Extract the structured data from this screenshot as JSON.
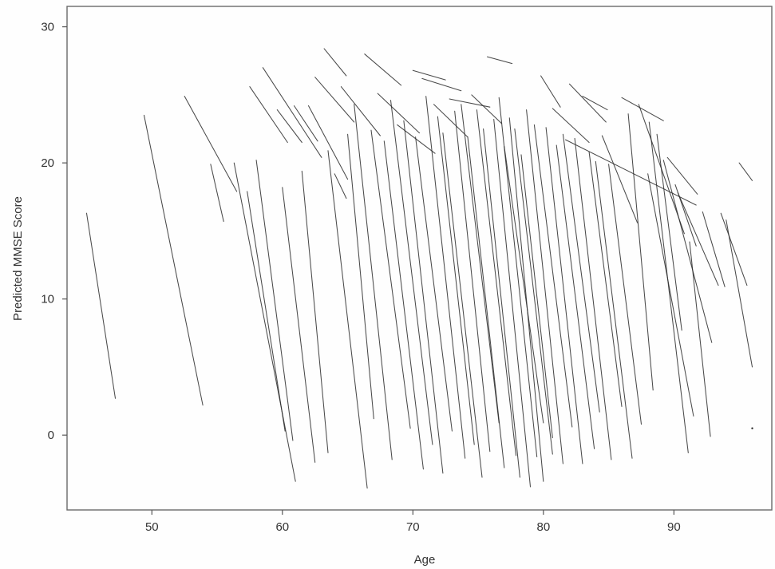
{
  "chart_data": {
    "type": "line",
    "title": "",
    "xlabel": "Age",
    "ylabel": "Predicted MMSE Score",
    "xlim": [
      43.5,
      97.5
    ],
    "ylim": [
      -5.5,
      31.5
    ],
    "x_ticks": [
      50,
      60,
      70,
      80,
      90
    ],
    "y_ticks": [
      0,
      10,
      20,
      30
    ],
    "x_tick_labels": [
      "50",
      "60",
      "70",
      "80",
      "90"
    ],
    "y_tick_labels": [
      "0",
      "10",
      "20",
      "30"
    ],
    "grid": false,
    "legend": "none",
    "line_color": "#2a2a2a",
    "series": [
      {
        "x": [
          45.0,
          47.2
        ],
        "y": [
          16.3,
          2.7
        ]
      },
      {
        "x": [
          49.4,
          53.9
        ],
        "y": [
          23.5,
          2.2
        ]
      },
      {
        "x": [
          52.5,
          56.5
        ],
        "y": [
          24.9,
          17.9
        ]
      },
      {
        "x": [
          54.5,
          55.5
        ],
        "y": [
          19.9,
          15.7
        ]
      },
      {
        "x": [
          56.3,
          61.0
        ],
        "y": [
          20.0,
          -3.4
        ]
      },
      {
        "x": [
          57.3,
          60.2
        ],
        "y": [
          17.9,
          0.3
        ]
      },
      {
        "x": [
          57.5,
          60.4
        ],
        "y": [
          25.6,
          21.5
        ]
      },
      {
        "x": [
          58.0,
          60.8
        ],
        "y": [
          20.2,
          -0.4
        ]
      },
      {
        "x": [
          58.5,
          63.0
        ],
        "y": [
          27.0,
          20.4
        ]
      },
      {
        "x": [
          59.6,
          61.5
        ],
        "y": [
          23.9,
          21.5
        ]
      },
      {
        "x": [
          60.0,
          62.5
        ],
        "y": [
          18.2,
          -2.0
        ]
      },
      {
        "x": [
          60.9,
          62.7
        ],
        "y": [
          24.2,
          21.6
        ]
      },
      {
        "x": [
          61.5,
          63.5
        ],
        "y": [
          19.4,
          -1.3
        ]
      },
      {
        "x": [
          62.0,
          65.0
        ],
        "y": [
          24.2,
          18.8
        ]
      },
      {
        "x": [
          62.5,
          65.5
        ],
        "y": [
          26.3,
          23.0
        ]
      },
      {
        "x": [
          63.2,
          64.9
        ],
        "y": [
          28.4,
          26.4
        ]
      },
      {
        "x": [
          63.5,
          66.5
        ],
        "y": [
          20.9,
          -3.9
        ]
      },
      {
        "x": [
          64.0,
          64.9
        ],
        "y": [
          19.2,
          17.4
        ]
      },
      {
        "x": [
          64.5,
          67.5
        ],
        "y": [
          25.6,
          22.0
        ]
      },
      {
        "x": [
          65.0,
          67.0
        ],
        "y": [
          22.1,
          1.2
        ]
      },
      {
        "x": [
          65.5,
          68.4
        ],
        "y": [
          24.3,
          -1.8
        ]
      },
      {
        "x": [
          66.3,
          69.1
        ],
        "y": [
          28.0,
          25.7
        ]
      },
      {
        "x": [
          66.8,
          69.8
        ],
        "y": [
          22.4,
          0.5
        ]
      },
      {
        "x": [
          67.3,
          70.5
        ],
        "y": [
          25.1,
          22.2
        ]
      },
      {
        "x": [
          67.8,
          70.8
        ],
        "y": [
          21.6,
          -2.5
        ]
      },
      {
        "x": [
          68.3,
          71.5
        ],
        "y": [
          24.6,
          -0.7
        ]
      },
      {
        "x": [
          68.8,
          71.7
        ],
        "y": [
          22.8,
          20.7
        ]
      },
      {
        "x": [
          69.3,
          72.3
        ],
        "y": [
          23.1,
          -2.8
        ]
      },
      {
        "x": [
          70.0,
          72.5
        ],
        "y": [
          26.8,
          26.1
        ]
      },
      {
        "x": [
          70.2,
          73.0
        ],
        "y": [
          21.9,
          0.3
        ]
      },
      {
        "x": [
          70.7,
          73.7
        ],
        "y": [
          26.2,
          25.3
        ]
      },
      {
        "x": [
          71.0,
          74.0
        ],
        "y": [
          24.9,
          -1.7
        ]
      },
      {
        "x": [
          71.6,
          74.2
        ],
        "y": [
          24.3,
          21.9
        ]
      },
      {
        "x": [
          71.9,
          74.7
        ],
        "y": [
          23.4,
          -0.7
        ]
      },
      {
        "x": [
          72.3,
          75.3
        ],
        "y": [
          22.2,
          -3.1
        ]
      },
      {
        "x": [
          72.8,
          75.9
        ],
        "y": [
          24.7,
          24.1
        ]
      },
      {
        "x": [
          73.2,
          75.9
        ],
        "y": [
          23.8,
          -1.2
        ]
      },
      {
        "x": [
          73.7,
          76.6
        ],
        "y": [
          24.3,
          0.9
        ]
      },
      {
        "x": [
          74.2,
          77.0
        ],
        "y": [
          21.9,
          -2.4
        ]
      },
      {
        "x": [
          74.5,
          76.8
        ],
        "y": [
          25.0,
          22.9
        ]
      },
      {
        "x": [
          74.9,
          77.9
        ],
        "y": [
          23.9,
          -1.5
        ]
      },
      {
        "x": [
          75.4,
          78.2
        ],
        "y": [
          22.5,
          -3.1
        ]
      },
      {
        "x": [
          75.7,
          77.6
        ],
        "y": [
          27.8,
          27.3
        ]
      },
      {
        "x": [
          76.2,
          79.0
        ],
        "y": [
          23.2,
          -3.8
        ]
      },
      {
        "x": [
          76.6,
          79.5
        ],
        "y": [
          24.8,
          -1.6
        ]
      },
      {
        "x": [
          77.0,
          80.0
        ],
        "y": [
          21.2,
          0.9
        ]
      },
      {
        "x": [
          77.4,
          80.0
        ],
        "y": [
          23.3,
          -3.4
        ]
      },
      {
        "x": [
          77.8,
          80.7
        ],
        "y": [
          22.5,
          -1.4
        ]
      },
      {
        "x": [
          78.3,
          80.7
        ],
        "y": [
          20.6,
          -0.2
        ]
      },
      {
        "x": [
          78.7,
          81.5
        ],
        "y": [
          23.9,
          -2.1
        ]
      },
      {
        "x": [
          79.3,
          82.2
        ],
        "y": [
          22.8,
          0.6
        ]
      },
      {
        "x": [
          79.8,
          81.3
        ],
        "y": [
          26.4,
          24.1
        ]
      },
      {
        "x": [
          80.2,
          83.0
        ],
        "y": [
          22.6,
          -2.1
        ]
      },
      {
        "x": [
          80.7,
          83.5
        ],
        "y": [
          24.0,
          21.5
        ]
      },
      {
        "x": [
          81.0,
          83.9
        ],
        "y": [
          21.3,
          -1.0
        ]
      },
      {
        "x": [
          81.5,
          84.3
        ],
        "y": [
          22.1,
          1.7
        ]
      },
      {
        "x": [
          82.0,
          84.8
        ],
        "y": [
          25.8,
          23.0
        ]
      },
      {
        "x": [
          82.4,
          85.2
        ],
        "y": [
          21.8,
          -1.8
        ]
      },
      {
        "x": [
          83.0,
          84.9
        ],
        "y": [
          24.9,
          23.9
        ]
      },
      {
        "x": [
          83.5,
          86.0
        ],
        "y": [
          20.8,
          2.1
        ]
      },
      {
        "x": [
          84.0,
          86.8
        ],
        "y": [
          20.1,
          -1.7
        ]
      },
      {
        "x": [
          84.5,
          87.2
        ],
        "y": [
          22.0,
          15.6
        ]
      },
      {
        "x": [
          85.0,
          87.5
        ],
        "y": [
          19.9,
          0.8
        ]
      },
      {
        "x": [
          86.0,
          89.2
        ],
        "y": [
          24.8,
          23.1
        ]
      },
      {
        "x": [
          86.5,
          88.4
        ],
        "y": [
          23.6,
          3.3
        ]
      },
      {
        "x": [
          87.3,
          90.8
        ],
        "y": [
          24.3,
          14.8
        ]
      },
      {
        "x": [
          88.0,
          91.5
        ],
        "y": [
          19.2,
          1.4
        ]
      },
      {
        "x": [
          88.7,
          90.6
        ],
        "y": [
          22.1,
          7.7
        ]
      },
      {
        "x": [
          89.2,
          92.9
        ],
        "y": [
          20.2,
          6.8
        ]
      },
      {
        "x": [
          89.5,
          91.8
        ],
        "y": [
          20.4,
          17.7
        ]
      },
      {
        "x": [
          90.1,
          91.7
        ],
        "y": [
          18.4,
          13.9
        ]
      },
      {
        "x": [
          88.1,
          91.1
        ],
        "y": [
          23.0,
          -1.3
        ]
      },
      {
        "x": [
          90.3,
          93.4
        ],
        "y": [
          17.8,
          11.0
        ]
      },
      {
        "x": [
          91.2,
          92.8
        ],
        "y": [
          14.2,
          -0.1
        ]
      },
      {
        "x": [
          92.2,
          93.9
        ],
        "y": [
          16.4,
          10.9
        ]
      },
      {
        "x": [
          93.6,
          95.6
        ],
        "y": [
          16.3,
          11.0
        ]
      },
      {
        "x": [
          94.0,
          96.0
        ],
        "y": [
          15.8,
          5.0
        ]
      },
      {
        "x": [
          95.0,
          96.0
        ],
        "y": [
          20.0,
          18.7
        ]
      },
      {
        "x": [
          96.0,
          96.0
        ],
        "y": [
          0.5,
          0.5
        ]
      },
      {
        "x": [
          81.7,
          91.7
        ],
        "y": [
          21.7,
          16.9
        ]
      }
    ]
  }
}
